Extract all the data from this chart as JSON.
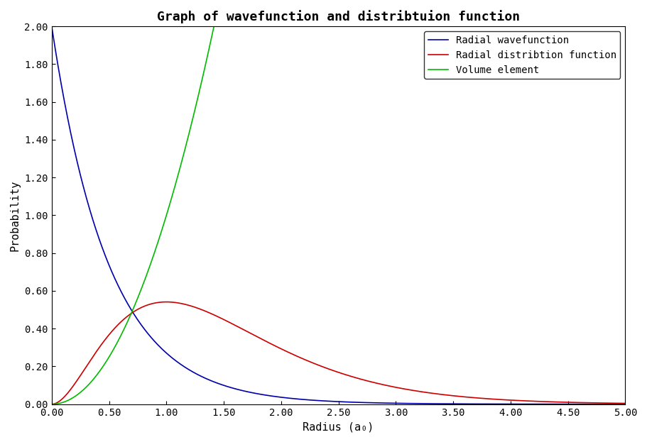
{
  "title": "Graph of wavefunction and distribtuion function",
  "xlabel": "Radius (a₀)",
  "ylabel": "Probability",
  "xlim": [
    0,
    5.0
  ],
  "ylim": [
    0,
    2.0
  ],
  "xticks": [
    0.0,
    0.5,
    1.0,
    1.5,
    2.0,
    2.5,
    3.0,
    3.5,
    4.0,
    4.5,
    5.0
  ],
  "yticks": [
    0.0,
    0.2,
    0.4,
    0.6,
    0.8,
    1.0,
    1.2,
    1.4,
    1.6,
    1.8,
    2.0
  ],
  "legend": [
    {
      "label": "Radial wavefunction",
      "color": "#0000aa"
    },
    {
      "label": "Radial distribtion function",
      "color": "#cc0000"
    },
    {
      "label": "Volume element",
      "color": "#00bb00"
    }
  ],
  "background_color": "#ffffff",
  "title_fontsize": 13,
  "axis_label_fontsize": 11,
  "tick_fontsize": 10,
  "legend_fontsize": 10,
  "wavefunction_scale": 2.0,
  "wavefunction_decay": 2.0,
  "rdf_scale": 4.0,
  "rdf_decay": 2.0,
  "volume_scale": 1.0,
  "volume_power": 2.0
}
